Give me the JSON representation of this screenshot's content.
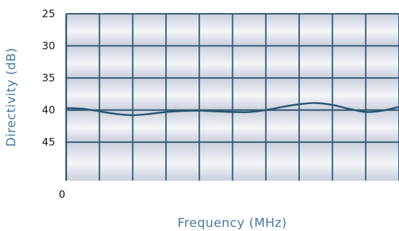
{
  "chart_data": {
    "type": "line",
    "xlabel": "Frequency (MHz)",
    "ylabel": "Directivity (dB)",
    "x_tick_labels": [
      "0"
    ],
    "y_ticks": [
      25,
      30,
      35,
      40,
      45
    ],
    "y_tick_labels": [
      "25",
      "30",
      "35",
      "40",
      "45"
    ],
    "ylim": [
      25,
      51
    ],
    "y_inverted": true,
    "xlim": [
      0,
      10
    ],
    "grid": true,
    "reference_line_y": 40,
    "series": [
      {
        "x": [
          0,
          0.5,
          1,
          1.5,
          2,
          2.5,
          3,
          3.5,
          4,
          4.5,
          5,
          5.5,
          6,
          6.5,
          7,
          7.5,
          8,
          8.5,
          9,
          9.5,
          10
        ],
        "y": [
          39.7,
          39.8,
          40.2,
          40.6,
          40.8,
          40.6,
          40.3,
          40.15,
          40.1,
          40.2,
          40.3,
          40.3,
          40.0,
          39.5,
          39.1,
          38.9,
          39.2,
          39.8,
          40.3,
          40.1,
          39.5
        ]
      }
    ]
  },
  "colors": {
    "grid": "#2e5873",
    "curve": "#2a5570",
    "reference": "#2e5873",
    "axis_title": "#4a7aa0",
    "band_light": "#f4f5f9",
    "band_dark": "#c9cfdc"
  }
}
